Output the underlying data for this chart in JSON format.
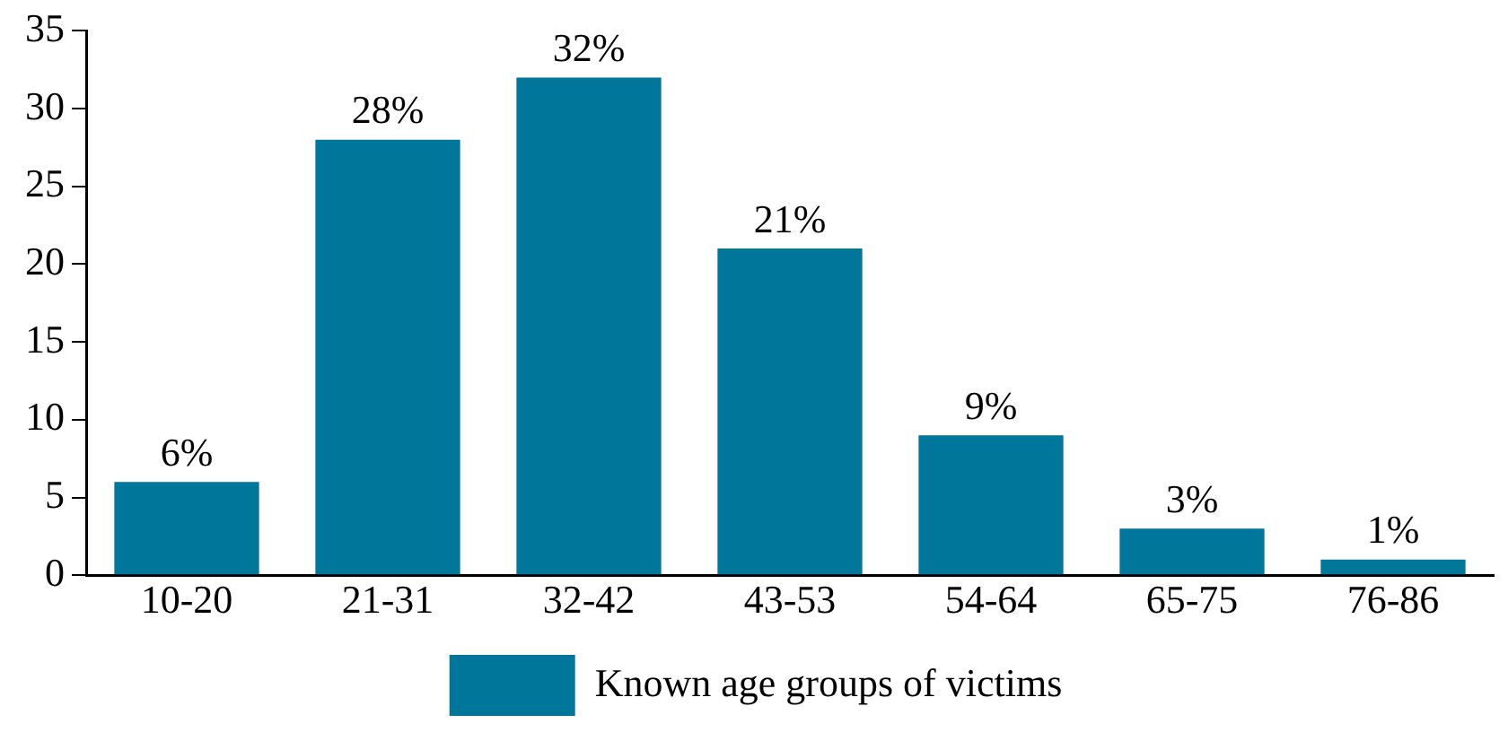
{
  "chart_data": {
    "type": "bar",
    "categories": [
      "10-20",
      "21-31",
      "32-42",
      "43-53",
      "54-64",
      "65-75",
      "76-86"
    ],
    "series": [
      {
        "name": "Known age groups of victims",
        "color": "#00779a",
        "values": [
          6,
          28,
          32,
          21,
          9,
          3,
          1
        ],
        "value_labels": [
          "6%",
          "28%",
          "32%",
          "21%",
          "9%",
          "3%",
          "1%"
        ]
      }
    ],
    "ylim": [
      0,
      35
    ],
    "yticks": [
      0,
      5,
      10,
      15,
      20,
      25,
      30,
      35
    ],
    "grid": false,
    "legend": "bottom"
  }
}
